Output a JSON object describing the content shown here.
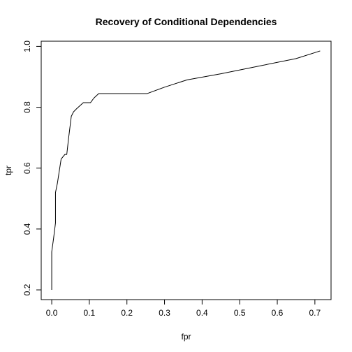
{
  "chart_data": {
    "type": "line",
    "title": "Recovery of Conditional Dependencies",
    "xlabel": "fpr",
    "ylabel": "tpr",
    "xlim": [
      -0.028,
      0.743
    ],
    "ylim": [
      0.168,
      1.017
    ],
    "grid": false,
    "line_color": "#000000",
    "x_ticks": [
      0.0,
      0.1,
      0.2,
      0.3,
      0.4,
      0.5,
      0.6,
      0.7
    ],
    "x_tick_labels": [
      "0.0",
      "0.1",
      "0.2",
      "0.3",
      "0.4",
      "0.5",
      "0.6",
      "0.7"
    ],
    "y_ticks": [
      0.2,
      0.4,
      0.6,
      0.8,
      1.0
    ],
    "y_tick_labels": [
      "0.2",
      "0.4",
      "0.6",
      "0.8",
      "1.0"
    ],
    "series": [
      {
        "x": [
          0.0,
          0.0,
          0.005,
          0.009,
          0.01,
          0.01,
          0.015,
          0.02,
          0.025,
          0.035,
          0.04,
          0.045,
          0.052,
          0.058,
          0.066,
          0.075,
          0.084,
          0.094,
          0.103,
          0.112,
          0.125,
          0.14,
          0.18,
          0.22,
          0.254,
          0.3,
          0.36,
          0.45,
          0.55,
          0.65,
          0.714
        ],
        "y": [
          0.2,
          0.325,
          0.37,
          0.41,
          0.42,
          0.52,
          0.55,
          0.59,
          0.63,
          0.645,
          0.645,
          0.7,
          0.77,
          0.785,
          0.795,
          0.805,
          0.815,
          0.815,
          0.815,
          0.83,
          0.845,
          0.845,
          0.845,
          0.845,
          0.845,
          0.866,
          0.89,
          0.91,
          0.935,
          0.96,
          0.985
        ]
      }
    ]
  }
}
